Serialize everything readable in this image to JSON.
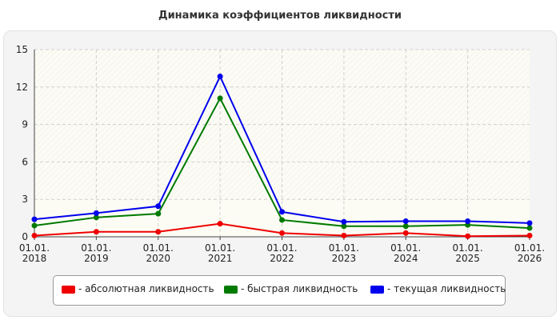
{
  "chart_data": {
    "type": "line",
    "title": "Динамика коэффициентов ликвидности",
    "xlabel": "",
    "ylabel": "",
    "categories": [
      "01.01.2018",
      "01.01.2019",
      "01.01.2020",
      "01.01.2021",
      "01.01.2022",
      "01.01.2023",
      "01.01.2024",
      "01.01.2025",
      "01.01.2026"
    ],
    "category_lines": [
      [
        "01.01.",
        "2018"
      ],
      [
        "01.01.",
        "2019"
      ],
      [
        "01.01.",
        "2020"
      ],
      [
        "01.01.",
        "2021"
      ],
      [
        "01.01.",
        "2022"
      ],
      [
        "01.01.",
        "2023"
      ],
      [
        "01.01.",
        "2024"
      ],
      [
        "01.01.",
        "2025"
      ],
      [
        "01.01.",
        "2026"
      ]
    ],
    "ylim": [
      0,
      15
    ],
    "yticks": [
      0,
      3,
      6,
      9,
      12,
      15
    ],
    "grid": true,
    "legend_position": "bottom",
    "series": [
      {
        "name": "- абсолютная ликвидность",
        "color": "#ee0000",
        "values": [
          0.1,
          0.4,
          0.4,
          1.05,
          0.3,
          0.1,
          0.3,
          0.05,
          0.1
        ]
      },
      {
        "name": "- быстрая ликвидность",
        "color": "#007a00",
        "values": [
          0.9,
          1.55,
          1.85,
          11.1,
          1.35,
          0.85,
          0.85,
          0.95,
          0.7
        ]
      },
      {
        "name": "- текущая ликвидность",
        "color": "#0000ee",
        "values": [
          1.4,
          1.9,
          2.45,
          12.85,
          2.0,
          1.2,
          1.25,
          1.25,
          1.1
        ]
      }
    ]
  }
}
